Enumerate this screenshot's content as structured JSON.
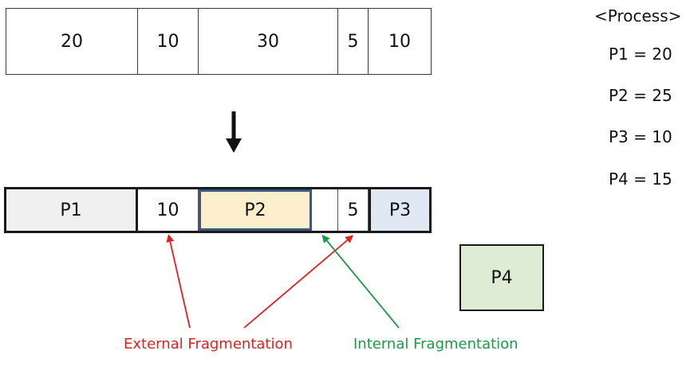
{
  "before": {
    "blocks": [
      "20",
      "10",
      "30",
      "5",
      "10"
    ]
  },
  "after": {
    "blocks": [
      {
        "label": "P1",
        "kind": "process",
        "color": "#f0f0f0"
      },
      {
        "label": "10",
        "kind": "free"
      },
      {
        "label": "P2",
        "kind": "process",
        "color": "#fdefcb"
      },
      {
        "label": "",
        "kind": "free"
      },
      {
        "label": "5",
        "kind": "free"
      },
      {
        "label": "P3",
        "kind": "process",
        "color": "#dfe8f3"
      }
    ]
  },
  "pending_process": {
    "label": "P4",
    "color": "#deecd6"
  },
  "process_list": {
    "title": "<Process>",
    "items": [
      "P1 = 20",
      "P2 = 25",
      "P3 = 10",
      "P4 = 15"
    ]
  },
  "labels": {
    "external": "External Fragmentation",
    "internal": "Internal Fragmentation"
  },
  "colors": {
    "external": "#e02020",
    "internal": "#1a9a48",
    "p2_border": "#3d5580"
  }
}
